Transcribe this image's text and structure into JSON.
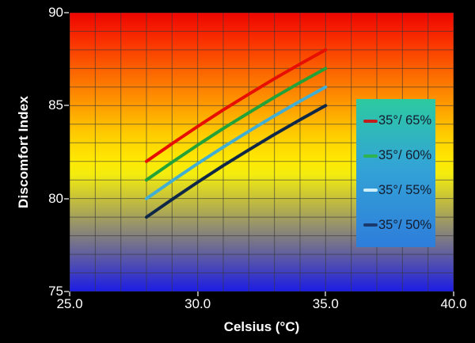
{
  "chart_data": {
    "type": "line",
    "title": "",
    "xlabel": "Celsius (°C)",
    "ylabel": "Discomfort Index",
    "xlim": [
      25,
      40
    ],
    "ylim": [
      75,
      90
    ],
    "grid": {
      "on": true,
      "step_x": 1,
      "step_y": 1,
      "color": "rgba(55,55,55,0.62)"
    },
    "x_ticks": [
      {
        "value": 25,
        "label": "25.0"
      },
      {
        "value": 30,
        "label": "30.0"
      },
      {
        "value": 35,
        "label": "35.0"
      },
      {
        "value": 40,
        "label": "40.0"
      }
    ],
    "y_ticks": [
      {
        "value": 90,
        "label": "90"
      },
      {
        "value": 85,
        "label": "85"
      },
      {
        "value": 80,
        "label": "80"
      },
      {
        "value": 75,
        "label": "75"
      }
    ],
    "x": [
      28,
      29,
      30,
      31,
      32,
      33,
      34,
      35
    ],
    "series": [
      {
        "name": "35°/ 65%",
        "color": "#e60f00",
        "legend_color": "#c21d1d",
        "values": [
          82.0,
          82.95,
          83.88,
          84.77,
          85.62,
          86.45,
          87.24,
          88.0
        ]
      },
      {
        "name": "35°/ 60%",
        "color": "#22a238",
        "legend_color": "#2eb44e",
        "values": [
          81.0,
          81.95,
          82.88,
          83.77,
          84.62,
          85.45,
          86.24,
          87.0
        ]
      },
      {
        "name": "35°/ 55%",
        "color": "#41aed2",
        "legend_color": "#cdeefb",
        "values": [
          80.0,
          80.95,
          81.88,
          82.77,
          83.62,
          84.45,
          85.24,
          86.0
        ]
      },
      {
        "name": "35°/ 50%",
        "color": "#0f2847",
        "legend_color": "#1a3a6e",
        "values": [
          79.0,
          79.95,
          80.88,
          81.77,
          82.62,
          83.45,
          84.24,
          85.0
        ]
      }
    ],
    "legend_position": "right-inside",
    "background_gradient": [
      "#ee0400",
      "#fc6000",
      "#fe9600",
      "#ffc900",
      "#ffe903",
      "#f3ec0e",
      "#1c1ce4"
    ],
    "legend_gradient": [
      "#2ccaa0",
      "#33a4d6",
      "#2e7ddb"
    ],
    "line_width": 4
  }
}
